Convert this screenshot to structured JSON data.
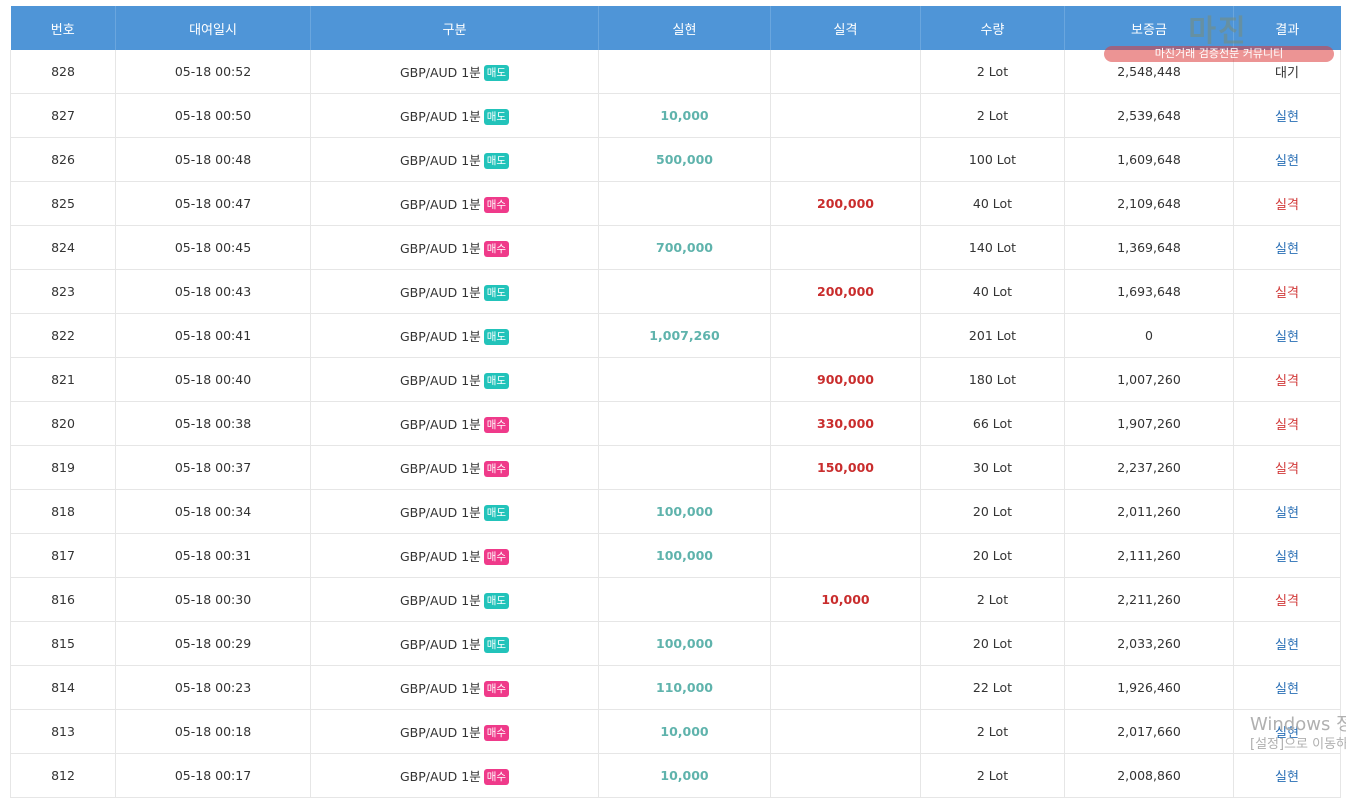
{
  "columns": [
    "번호",
    "대여일시",
    "구분",
    "실현",
    "실격",
    "수량",
    "보증금",
    "결과"
  ],
  "rows": [
    {
      "no": "828",
      "time": "05-18 00:52",
      "pair": "GBP/AUD 1분",
      "side": "매도",
      "sideType": "sell",
      "profit": "",
      "loss": "",
      "qty": "2 Lot",
      "deposit": "2,548,448",
      "result": "대기",
      "resultType": "wait"
    },
    {
      "no": "827",
      "time": "05-18 00:50",
      "pair": "GBP/AUD 1분",
      "side": "매도",
      "sideType": "sell",
      "profit": "10,000",
      "loss": "",
      "qty": "2 Lot",
      "deposit": "2,539,648",
      "result": "실현",
      "resultType": "win"
    },
    {
      "no": "826",
      "time": "05-18 00:48",
      "pair": "GBP/AUD 1분",
      "side": "매도",
      "sideType": "sell",
      "profit": "500,000",
      "loss": "",
      "qty": "100 Lot",
      "deposit": "1,609,648",
      "result": "실현",
      "resultType": "win"
    },
    {
      "no": "825",
      "time": "05-18 00:47",
      "pair": "GBP/AUD 1분",
      "side": "매수",
      "sideType": "buy",
      "profit": "",
      "loss": "200,000",
      "qty": "40 Lot",
      "deposit": "2,109,648",
      "result": "실격",
      "resultType": "lose"
    },
    {
      "no": "824",
      "time": "05-18 00:45",
      "pair": "GBP/AUD 1분",
      "side": "매수",
      "sideType": "buy",
      "profit": "700,000",
      "loss": "",
      "qty": "140 Lot",
      "deposit": "1,369,648",
      "result": "실현",
      "resultType": "win"
    },
    {
      "no": "823",
      "time": "05-18 00:43",
      "pair": "GBP/AUD 1분",
      "side": "매도",
      "sideType": "sell",
      "profit": "",
      "loss": "200,000",
      "qty": "40 Lot",
      "deposit": "1,693,648",
      "result": "실격",
      "resultType": "lose"
    },
    {
      "no": "822",
      "time": "05-18 00:41",
      "pair": "GBP/AUD 1분",
      "side": "매도",
      "sideType": "sell",
      "profit": "1,007,260",
      "loss": "",
      "qty": "201 Lot",
      "deposit": "0",
      "result": "실현",
      "resultType": "win"
    },
    {
      "no": "821",
      "time": "05-18 00:40",
      "pair": "GBP/AUD 1분",
      "side": "매도",
      "sideType": "sell",
      "profit": "",
      "loss": "900,000",
      "qty": "180 Lot",
      "deposit": "1,007,260",
      "result": "실격",
      "resultType": "lose"
    },
    {
      "no": "820",
      "time": "05-18 00:38",
      "pair": "GBP/AUD 1분",
      "side": "매수",
      "sideType": "buy",
      "profit": "",
      "loss": "330,000",
      "qty": "66 Lot",
      "deposit": "1,907,260",
      "result": "실격",
      "resultType": "lose"
    },
    {
      "no": "819",
      "time": "05-18 00:37",
      "pair": "GBP/AUD 1분",
      "side": "매수",
      "sideType": "buy",
      "profit": "",
      "loss": "150,000",
      "qty": "30 Lot",
      "deposit": "2,237,260",
      "result": "실격",
      "resultType": "lose"
    },
    {
      "no": "818",
      "time": "05-18 00:34",
      "pair": "GBP/AUD 1분",
      "side": "매도",
      "sideType": "sell",
      "profit": "100,000",
      "loss": "",
      "qty": "20 Lot",
      "deposit": "2,011,260",
      "result": "실현",
      "resultType": "win"
    },
    {
      "no": "817",
      "time": "05-18 00:31",
      "pair": "GBP/AUD 1분",
      "side": "매수",
      "sideType": "buy",
      "profit": "100,000",
      "loss": "",
      "qty": "20 Lot",
      "deposit": "2,111,260",
      "result": "실현",
      "resultType": "win"
    },
    {
      "no": "816",
      "time": "05-18 00:30",
      "pair": "GBP/AUD 1분",
      "side": "매도",
      "sideType": "sell",
      "profit": "",
      "loss": "10,000",
      "qty": "2 Lot",
      "deposit": "2,211,260",
      "result": "실격",
      "resultType": "lose"
    },
    {
      "no": "815",
      "time": "05-18 00:29",
      "pair": "GBP/AUD 1분",
      "side": "매도",
      "sideType": "sell",
      "profit": "100,000",
      "loss": "",
      "qty": "20 Lot",
      "deposit": "2,033,260",
      "result": "실현",
      "resultType": "win"
    },
    {
      "no": "814",
      "time": "05-18 00:23",
      "pair": "GBP/AUD 1분",
      "side": "매수",
      "sideType": "buy",
      "profit": "110,000",
      "loss": "",
      "qty": "22 Lot",
      "deposit": "1,926,460",
      "result": "실현",
      "resultType": "win"
    },
    {
      "no": "813",
      "time": "05-18 00:18",
      "pair": "GBP/AUD 1분",
      "side": "매수",
      "sideType": "buy",
      "profit": "10,000",
      "loss": "",
      "qty": "2 Lot",
      "deposit": "2,017,660",
      "result": "실현",
      "resultType": "win"
    },
    {
      "no": "812",
      "time": "05-18 00:17",
      "pair": "GBP/AUD 1분",
      "side": "매수",
      "sideType": "buy",
      "profit": "10,000",
      "loss": "",
      "qty": "2 Lot",
      "deposit": "2,008,860",
      "result": "실현",
      "resultType": "win"
    }
  ],
  "watermark": {
    "title": "마진",
    "subtitle": "마진거래 검증전문 커뮤니티"
  },
  "windows_activation": {
    "line1": "Windows 정품 인증",
    "line2": "[설정]으로 이동하여 Windows를 정품 인증합니다."
  },
  "colors": {
    "header": "#4f95d7",
    "sell_tag": "#22c3ba",
    "buy_tag": "#ef3a8a",
    "profit": "#5fb3ac",
    "loss": "#c92d2d",
    "result_win": "#2a6fb5",
    "result_lose": "#d23a3a"
  }
}
